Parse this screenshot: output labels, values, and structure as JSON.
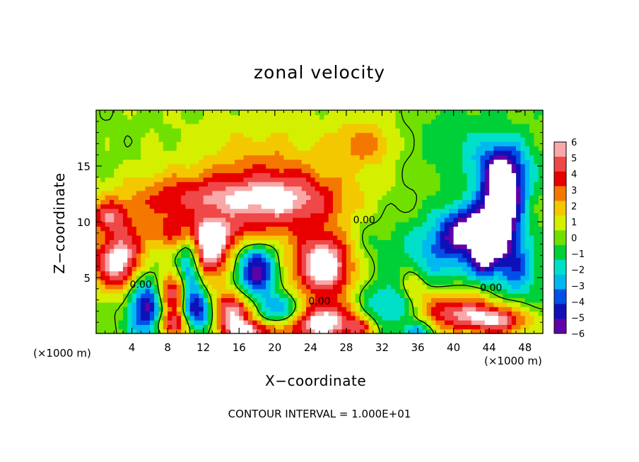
{
  "chart_data": {
    "type": "heatmap",
    "title": "zonal velocity",
    "xlabel": "X−coordinate",
    "ylabel": "Z−coordinate",
    "x_unit_left": "(×1000 m)",
    "x_unit_right": "(×1000 m)",
    "footer": "CONTOUR INTERVAL = 1.000E+01",
    "xlim": [
      0,
      50
    ],
    "ylim": [
      0,
      20
    ],
    "x_ticks": [
      4,
      8,
      12,
      16,
      20,
      24,
      28,
      32,
      36,
      40,
      44,
      48
    ],
    "y_ticks": [
      5,
      10,
      15
    ],
    "x_tick_labels": [
      "4",
      "8",
      "12",
      "16",
      "20",
      "24",
      "28",
      "32",
      "36",
      "40",
      "44",
      "48"
    ],
    "y_tick_labels": [
      "5",
      "10",
      "15"
    ],
    "colorbar": {
      "range": [
        -6,
        6
      ],
      "ticks": [
        6,
        5,
        4,
        3,
        2,
        1,
        0,
        -1,
        -2,
        -3,
        -4,
        -5,
        -6
      ],
      "tick_labels": [
        "6",
        "5",
        "4",
        "3",
        "2",
        "1",
        "0",
        "−1",
        "−2",
        "−3",
        "−4",
        "−5",
        "−6"
      ],
      "colors": [
        "#f8a8a8",
        "#f04848",
        "#e80000",
        "#f47800",
        "#f4c800",
        "#d4f000",
        "#70e000",
        "#00d038",
        "#00e0c8",
        "#00b8f0",
        "#0050e8",
        "#1010b8",
        "#6000a8"
      ]
    },
    "contour_labels": [
      {
        "text": "0.00",
        "x": 30.0,
        "z": 10.2
      },
      {
        "text": "0.00",
        "x": 5.0,
        "z": 4.4
      },
      {
        "text": "0.00",
        "x": 25.0,
        "z": 2.9
      },
      {
        "text": "0.00",
        "x": 44.2,
        "z": 4.1
      }
    ],
    "features": [
      {
        "x": 30,
        "z": 17,
        "v": 2.6,
        "sx": 2.4,
        "sz": 1.5
      },
      {
        "x": 12,
        "z": 12,
        "v": 4.5,
        "sx": 6.5,
        "sz": 1.6
      },
      {
        "x": 22,
        "z": 12,
        "v": 4.2,
        "sx": 4.5,
        "sz": 1.8
      },
      {
        "x": 12,
        "z": 9,
        "v": 3.6,
        "sx": 5,
        "sz": 1.0
      },
      {
        "x": 25.5,
        "z": 6.2,
        "v": 7.5,
        "sx": 2.3,
        "sz": 2.0
      },
      {
        "x": 2.5,
        "z": 6.5,
        "v": 7.0,
        "sx": 2.0,
        "sz": 1.8
      },
      {
        "x": 12.5,
        "z": 7.2,
        "v": 6.5,
        "sx": 1.6,
        "sz": 1.6
      },
      {
        "x": 8.5,
        "z": 3.5,
        "v": 7.0,
        "sx": 1.7,
        "sz": 1.5
      },
      {
        "x": 15,
        "z": 2.0,
        "v": 6.5,
        "sx": 1.8,
        "sz": 1.2
      },
      {
        "x": 25,
        "z": 1.0,
        "v": 7.0,
        "sx": 3.0,
        "sz": 1.2
      },
      {
        "x": 8.5,
        "z": 0.8,
        "v": 5.5,
        "sx": 1.5,
        "sz": 0.8
      },
      {
        "x": 17,
        "z": 0.3,
        "v": 5.0,
        "sx": 2.0,
        "sz": 0.6
      },
      {
        "x": 40,
        "z": 2.0,
        "v": 5.0,
        "sx": 3.0,
        "sz": 1.2
      },
      {
        "x": 45,
        "z": 1.2,
        "v": 5.5,
        "sx": 2.5,
        "sz": 0.9
      },
      {
        "x": 35.5,
        "z": 4.0,
        "v": 2.5,
        "sx": 1.0,
        "sz": 1.0
      },
      {
        "x": 29.5,
        "z": 0.6,
        "v": 3.0,
        "sx": 1.0,
        "sz": 0.6
      },
      {
        "x": 1.5,
        "z": 10.5,
        "v": 4.0,
        "sx": 1.5,
        "sz": 1.0
      },
      {
        "x": 18,
        "z": 15.5,
        "v": 1.5,
        "sx": 5,
        "sz": 2.0
      },
      {
        "x": 6,
        "z": 2.5,
        "v": -7.5,
        "sx": 1.6,
        "sz": 2.2
      },
      {
        "x": 10.5,
        "z": 5.0,
        "v": -6.5,
        "sx": 1.0,
        "sz": 3.0
      },
      {
        "x": 18,
        "z": 5.5,
        "v": -6.5,
        "sx": 1.6,
        "sz": 1.8
      },
      {
        "x": 12,
        "z": 2.0,
        "v": -5.5,
        "sx": 1.4,
        "sz": 1.2
      },
      {
        "x": 21,
        "z": 2.0,
        "v": -5.0,
        "sx": 2.0,
        "sz": 1.0
      },
      {
        "x": 33,
        "z": 2.5,
        "v": -3.5,
        "sx": 2.5,
        "sz": 1.5
      },
      {
        "x": 36,
        "z": 0.2,
        "v": -4.0,
        "sx": 1.0,
        "sz": 0.6
      },
      {
        "x": 45.5,
        "z": 12.0,
        "v": -7.5,
        "sx": 1.6,
        "sz": 2.0
      },
      {
        "x": 44.5,
        "z": 9.0,
        "v": -6.0,
        "sx": 1.6,
        "sz": 1.5
      },
      {
        "x": 41.5,
        "z": 9.5,
        "v": -5.0,
        "sx": 2.0,
        "sz": 1.5
      },
      {
        "x": 45.5,
        "z": 15.0,
        "v": -4.5,
        "sx": 2.2,
        "sz": 1.8
      },
      {
        "x": 43.5,
        "z": 6.5,
        "v": -5.0,
        "sx": 1.2,
        "sz": 1.2
      },
      {
        "x": 39,
        "z": 7.5,
        "v": -3.5,
        "sx": 2.5,
        "sz": 2.0
      },
      {
        "x": 47,
        "z": 6.0,
        "v": -4.0,
        "sx": 1.5,
        "sz": 2.0
      },
      {
        "x": 40,
        "z": 17,
        "v": -1.3,
        "sx": 4.0,
        "sz": 3.0
      },
      {
        "x": 32,
        "z": 8,
        "v": -1.2,
        "sx": 4.0,
        "sz": 2.0
      }
    ]
  }
}
